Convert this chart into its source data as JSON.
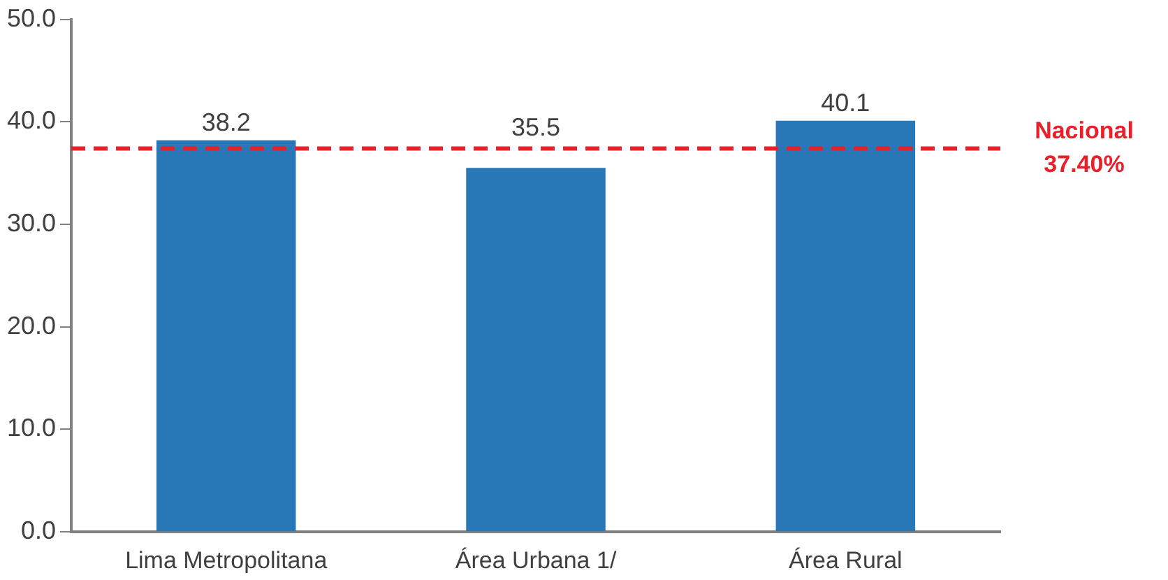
{
  "chart_data": {
    "type": "bar",
    "categories": [
      "Lima Metropolitana",
      "Área Urbana 1/",
      "Área Rural"
    ],
    "values": [
      38.2,
      35.5,
      40.1
    ],
    "color": "#2878b8",
    "ylim": [
      0,
      50
    ],
    "yticks": [
      {
        "value": 0,
        "label": "0.0"
      },
      {
        "value": 10,
        "label": "10.0"
      },
      {
        "value": 20,
        "label": "20.0"
      },
      {
        "value": 30,
        "label": "30.0"
      },
      {
        "value": 40,
        "label": "40.0"
      },
      {
        "value": 50,
        "label": "50.0"
      }
    ],
    "data_labels": true,
    "grid": false,
    "legend": false,
    "ref_lines": [
      {
        "axis": "y",
        "value": 37.4,
        "label": "Nacional\n37.40%",
        "color": "#e8202a",
        "line_style": "dashed"
      }
    ]
  }
}
